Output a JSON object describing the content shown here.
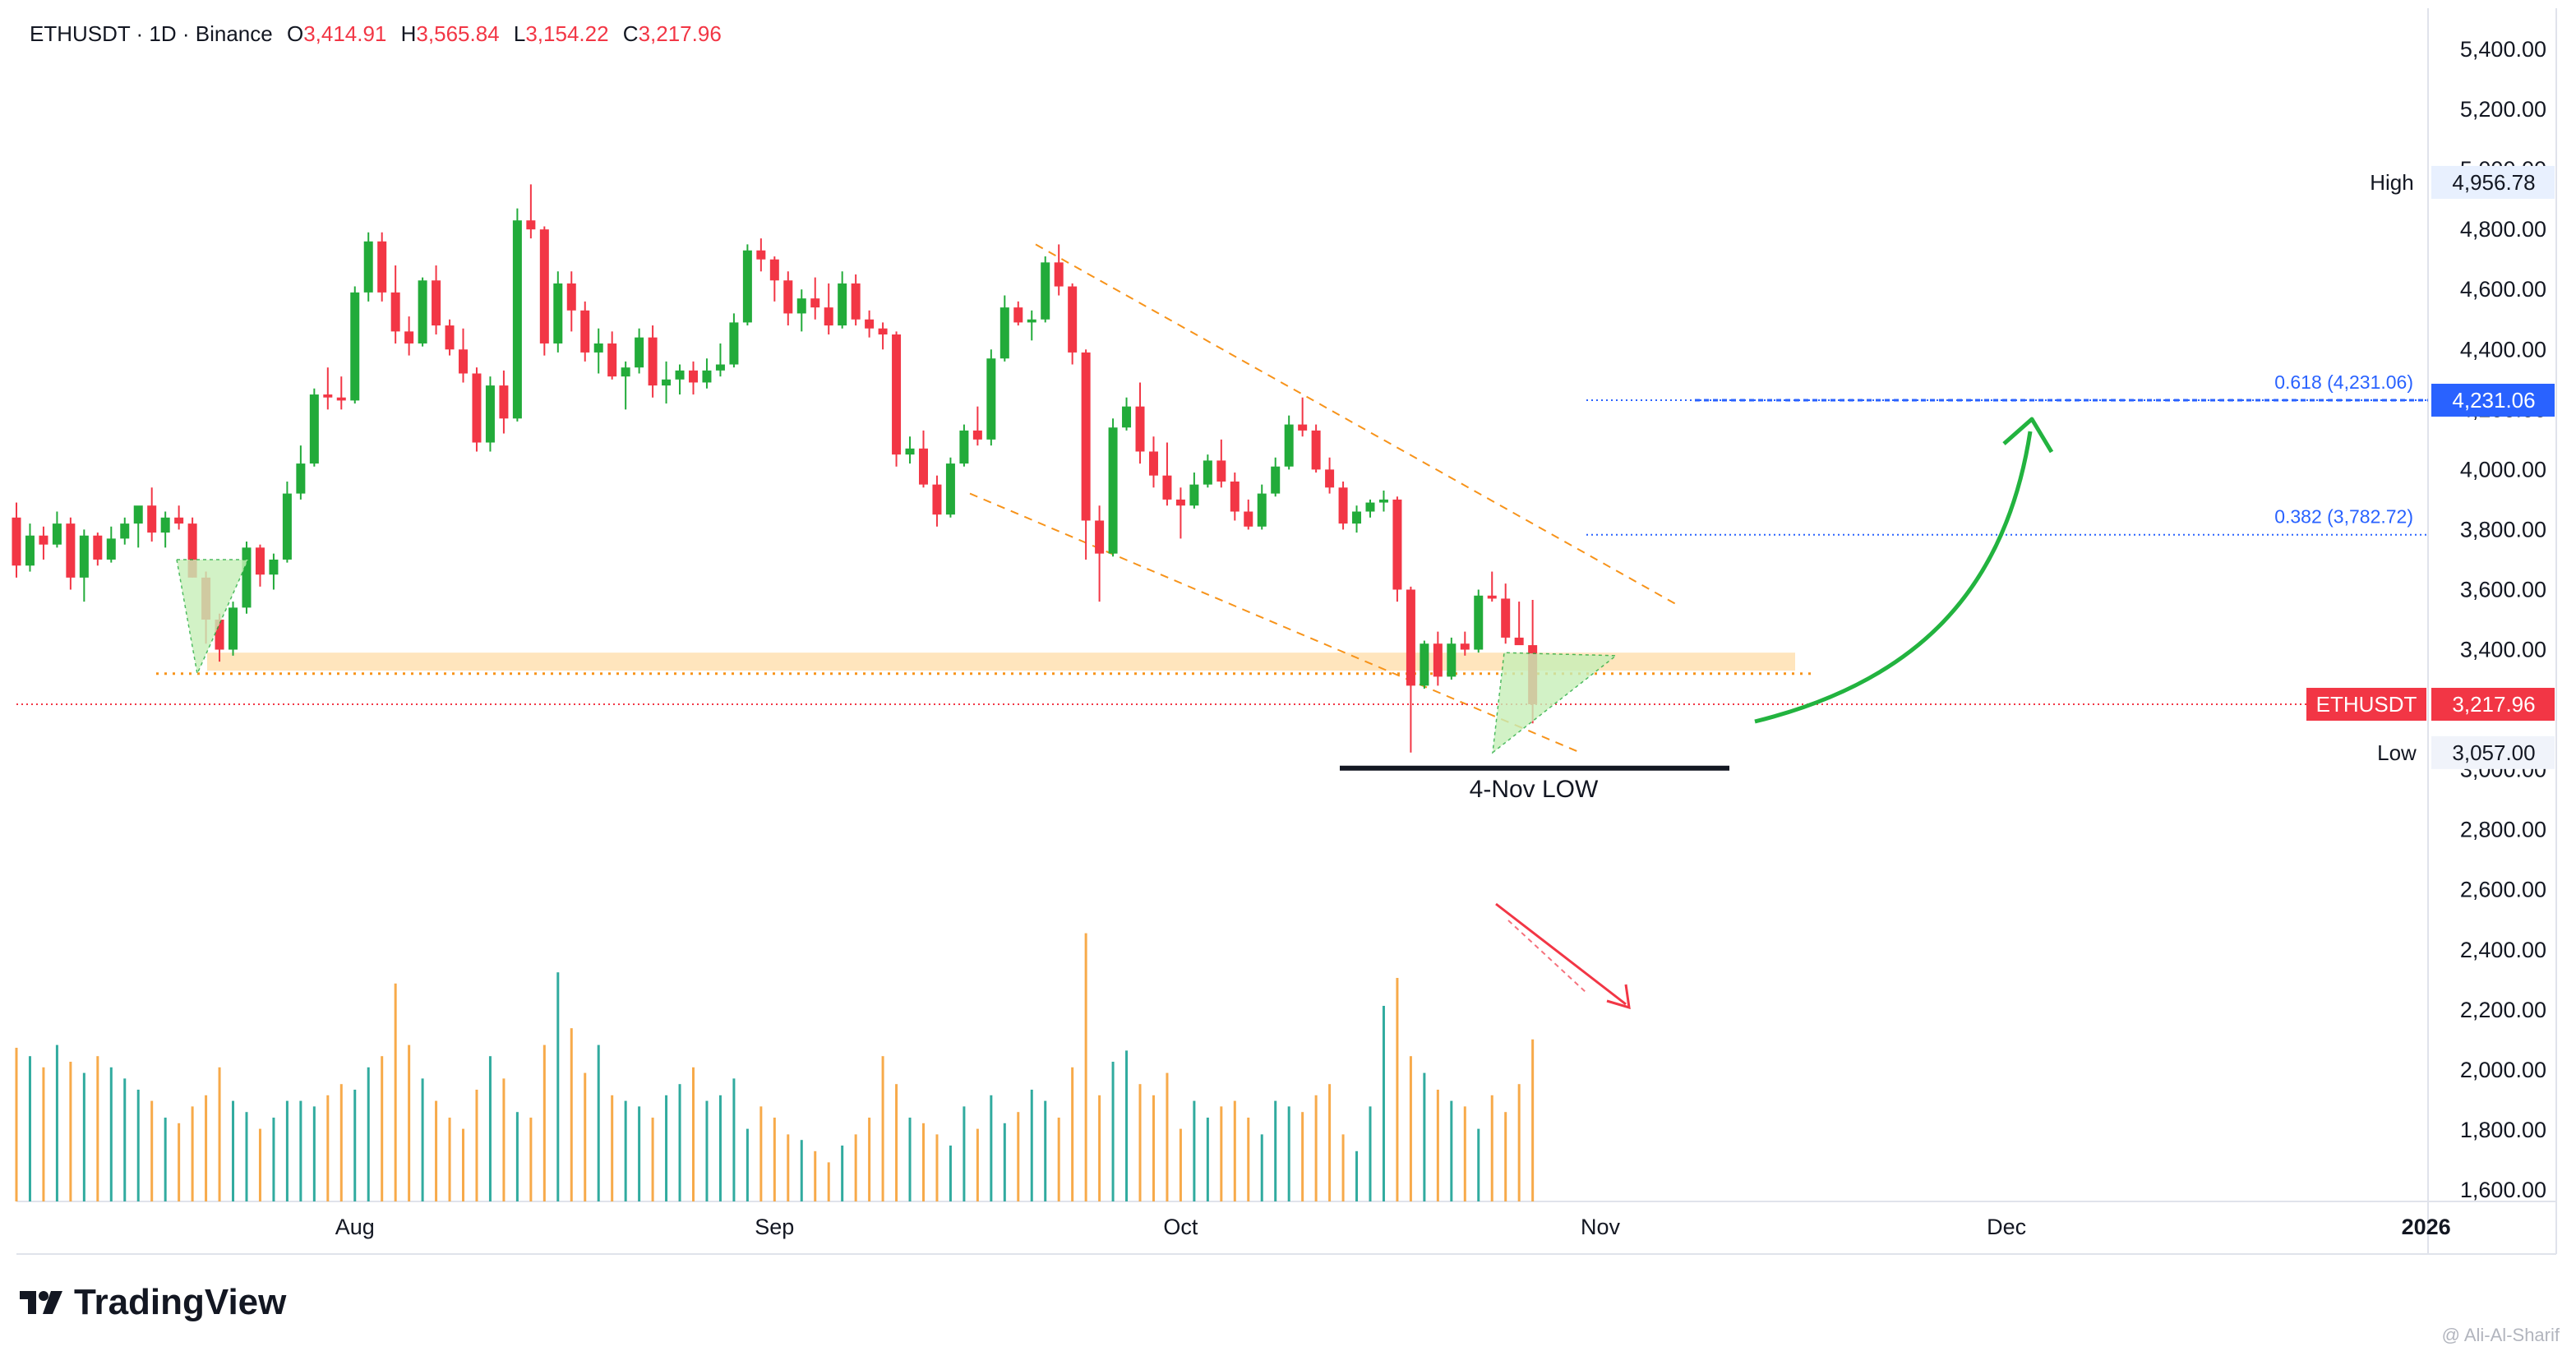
{
  "header": {
    "symbol_line": "ETHUSDT · 1D · Binance",
    "o_label": "O",
    "o_value": "3,414.91",
    "h_label": "H",
    "h_value": "3,565.84",
    "l_label": "L",
    "l_value": "3,154.22",
    "c_label": "C",
    "c_value": "3,217.96"
  },
  "brand": {
    "name": "TradingView",
    "watermark": "@ Ali-Al-Sharif"
  },
  "colors": {
    "up": "#22ab3a",
    "down": "#f23645",
    "vol_up": "#26a69a",
    "vol_down": "#f7a540",
    "fib": "#2962ff",
    "channel": "#f7931a",
    "zone": "#ffe0b2",
    "arrow_green": "#22b33f",
    "arrow_red": "#f23645"
  },
  "chart_data": {
    "type": "candlestick",
    "symbol": "ETHUSDT",
    "interval": "1D",
    "y_axis_ticks": [
      "5,400.00",
      "5,200.00",
      "5,000.00",
      "4,800.00",
      "4,600.00",
      "4,400.00",
      "4,200.00",
      "4,000.00",
      "3,800.00",
      "3,600.00",
      "3,400.00",
      "3,200.00",
      "3,000.00",
      "2,800.00",
      "2,600.00",
      "2,400.00",
      "2,200.00",
      "2,000.00",
      "1,800.00",
      "1,600.00"
    ],
    "x_axis_labels": [
      "Aug",
      "Sep",
      "Oct",
      "Nov",
      "Dec",
      "2026"
    ],
    "x_axis_dates": [
      "2025-08-01",
      "2025-09-01",
      "2025-10-01",
      "2025-11-01",
      "2025-12-01",
      "2026-01-01"
    ],
    "first_candle_date": "2025-07-07",
    "y_range": [
      1600,
      5400
    ],
    "ohlc": [
      [
        3840,
        3890,
        3640,
        3680
      ],
      [
        3680,
        3820,
        3660,
        3780
      ],
      [
        3780,
        3810,
        3700,
        3750
      ],
      [
        3750,
        3860,
        3740,
        3820
      ],
      [
        3820,
        3840,
        3600,
        3640
      ],
      [
        3640,
        3800,
        3560,
        3780
      ],
      [
        3780,
        3790,
        3680,
        3700
      ],
      [
        3700,
        3810,
        3690,
        3770
      ],
      [
        3770,
        3840,
        3750,
        3820
      ],
      [
        3820,
        3860,
        3740,
        3880
      ],
      [
        3880,
        3940,
        3760,
        3790
      ],
      [
        3790,
        3860,
        3740,
        3840
      ],
      [
        3840,
        3880,
        3800,
        3820
      ],
      [
        3820,
        3840,
        3640,
        3640
      ],
      [
        3640,
        3660,
        3420,
        3500
      ],
      [
        3500,
        3520,
        3360,
        3400
      ],
      [
        3400,
        3560,
        3380,
        3540
      ],
      [
        3540,
        3760,
        3520,
        3740
      ],
      [
        3740,
        3750,
        3610,
        3650
      ],
      [
        3650,
        3720,
        3600,
        3700
      ],
      [
        3700,
        3960,
        3690,
        3920
      ],
      [
        3920,
        4080,
        3900,
        4020
      ],
      [
        4020,
        4270,
        4010,
        4250
      ],
      [
        4250,
        4340,
        4200,
        4240
      ],
      [
        4240,
        4310,
        4200,
        4230
      ],
      [
        4230,
        4610,
        4220,
        4590
      ],
      [
        4590,
        4790,
        4560,
        4760
      ],
      [
        4760,
        4790,
        4560,
        4590
      ],
      [
        4590,
        4680,
        4420,
        4460
      ],
      [
        4460,
        4510,
        4380,
        4420
      ],
      [
        4420,
        4640,
        4410,
        4630
      ],
      [
        4630,
        4680,
        4450,
        4480
      ],
      [
        4480,
        4500,
        4380,
        4400
      ],
      [
        4400,
        4470,
        4290,
        4320
      ],
      [
        4320,
        4340,
        4060,
        4090
      ],
      [
        4090,
        4310,
        4060,
        4280
      ],
      [
        4280,
        4330,
        4120,
        4170
      ],
      [
        4170,
        4870,
        4160,
        4830
      ],
      [
        4830,
        4950,
        4770,
        4800
      ],
      [
        4800,
        4810,
        4380,
        4420
      ],
      [
        4420,
        4660,
        4390,
        4620
      ],
      [
        4620,
        4660,
        4460,
        4530
      ],
      [
        4530,
        4560,
        4360,
        4390
      ],
      [
        4390,
        4470,
        4320,
        4420
      ],
      [
        4420,
        4460,
        4300,
        4310
      ],
      [
        4310,
        4360,
        4200,
        4340
      ],
      [
        4340,
        4470,
        4320,
        4440
      ],
      [
        4440,
        4480,
        4240,
        4280
      ],
      [
        4280,
        4360,
        4220,
        4300
      ],
      [
        4300,
        4350,
        4250,
        4330
      ],
      [
        4330,
        4360,
        4250,
        4290
      ],
      [
        4290,
        4370,
        4270,
        4330
      ],
      [
        4330,
        4420,
        4310,
        4350
      ],
      [
        4350,
        4520,
        4340,
        4490
      ],
      [
        4490,
        4750,
        4480,
        4730
      ],
      [
        4730,
        4770,
        4660,
        4700
      ],
      [
        4700,
        4710,
        4560,
        4630
      ],
      [
        4630,
        4660,
        4480,
        4520
      ],
      [
        4520,
        4600,
        4460,
        4570
      ],
      [
        4570,
        4640,
        4500,
        4540
      ],
      [
        4540,
        4620,
        4450,
        4480
      ],
      [
        4480,
        4660,
        4470,
        4620
      ],
      [
        4620,
        4650,
        4480,
        4500
      ],
      [
        4500,
        4530,
        4440,
        4470
      ],
      [
        4470,
        4490,
        4400,
        4450
      ],
      [
        4450,
        4460,
        4010,
        4050
      ],
      [
        4050,
        4110,
        4020,
        4070
      ],
      [
        4070,
        4130,
        3940,
        3950
      ],
      [
        3950,
        3980,
        3810,
        3850
      ],
      [
        3850,
        4040,
        3840,
        4020
      ],
      [
        4020,
        4150,
        4010,
        4130
      ],
      [
        4130,
        4210,
        4080,
        4100
      ],
      [
        4100,
        4400,
        4080,
        4370
      ],
      [
        4370,
        4580,
        4360,
        4540
      ],
      [
        4540,
        4560,
        4480,
        4490
      ],
      [
        4490,
        4530,
        4430,
        4500
      ],
      [
        4500,
        4710,
        4490,
        4690
      ],
      [
        4690,
        4750,
        4580,
        4610
      ],
      [
        4610,
        4620,
        4350,
        4390
      ],
      [
        4390,
        4400,
        3700,
        3830
      ],
      [
        3830,
        3880,
        3560,
        3720
      ],
      [
        3720,
        4170,
        3710,
        4140
      ],
      [
        4140,
        4240,
        4130,
        4210
      ],
      [
        4210,
        4290,
        4020,
        4060
      ],
      [
        4060,
        4110,
        3940,
        3980
      ],
      [
        3980,
        4090,
        3880,
        3900
      ],
      [
        3900,
        3940,
        3770,
        3880
      ],
      [
        3880,
        3990,
        3870,
        3950
      ],
      [
        3950,
        4050,
        3940,
        4030
      ],
      [
        4030,
        4100,
        3940,
        3960
      ],
      [
        3960,
        3990,
        3830,
        3860
      ],
      [
        3860,
        3900,
        3800,
        3810
      ],
      [
        3810,
        3950,
        3800,
        3920
      ],
      [
        3920,
        4040,
        3910,
        4010
      ],
      [
        4010,
        4180,
        4000,
        4150
      ],
      [
        4150,
        4240,
        4110,
        4130
      ],
      [
        4130,
        4150,
        3990,
        4000
      ],
      [
        4000,
        4040,
        3920,
        3940
      ],
      [
        3940,
        3960,
        3800,
        3820
      ],
      [
        3820,
        3880,
        3790,
        3860
      ],
      [
        3860,
        3900,
        3840,
        3890
      ],
      [
        3890,
        3930,
        3860,
        3900
      ],
      [
        3900,
        3910,
        3560,
        3600
      ],
      [
        3600,
        3610,
        3057,
        3280
      ],
      [
        3280,
        3430,
        3270,
        3420
      ],
      [
        3420,
        3460,
        3280,
        3310
      ],
      [
        3310,
        3440,
        3300,
        3420
      ],
      [
        3420,
        3460,
        3380,
        3400
      ],
      [
        3400,
        3600,
        3390,
        3580
      ],
      [
        3580,
        3660,
        3560,
        3570
      ],
      [
        3570,
        3620,
        3420,
        3440
      ],
      [
        3440,
        3560,
        3420,
        3414.91
      ],
      [
        3414.91,
        3565.84,
        3154.22,
        3217.96
      ]
    ],
    "volume_heights": [
      0.55,
      0.52,
      0.48,
      0.56,
      0.5,
      0.46,
      0.52,
      0.48,
      0.44,
      0.4,
      0.36,
      0.3,
      0.28,
      0.34,
      0.38,
      0.48,
      0.36,
      0.32,
      0.26,
      0.3,
      0.36,
      0.36,
      0.34,
      0.38,
      0.42,
      0.4,
      0.48,
      0.52,
      0.78,
      0.56,
      0.44,
      0.36,
      0.3,
      0.26,
      0.4,
      0.52,
      0.44,
      0.32,
      0.3,
      0.56,
      0.82,
      0.62,
      0.46,
      0.56,
      0.38,
      0.36,
      0.34,
      0.3,
      0.38,
      0.42,
      0.48,
      0.36,
      0.38,
      0.44,
      0.26,
      0.34,
      0.3,
      0.24,
      0.22,
      0.18,
      0.14,
      0.2,
      0.24,
      0.3,
      0.52,
      0.42,
      0.3,
      0.28,
      0.24,
      0.2,
      0.34,
      0.26,
      0.38,
      0.28,
      0.32,
      0.4,
      0.36,
      0.3,
      0.48,
      0.96,
      0.38,
      0.5,
      0.54,
      0.42,
      0.38,
      0.46,
      0.26,
      0.36,
      0.3,
      0.34,
      0.36,
      0.3,
      0.24,
      0.36,
      0.34,
      0.32,
      0.38,
      0.42,
      0.24,
      0.18,
      0.34,
      0.7,
      0.8,
      0.52,
      0.46,
      0.4,
      0.36,
      0.34,
      0.26,
      0.38,
      0.32,
      0.42,
      0.58
    ],
    "annotations": {
      "high_label": "High",
      "high_value": "4,956.78",
      "low_label": "Low",
      "low_value": "3,057.00",
      "last_label": "ETHUSDT",
      "last_value": "3,217.96",
      "fib_618_label": "0.618 (4,231.06)",
      "fib_618_value": "4,231.06",
      "fib_618_price": 4231.06,
      "fib_382_label": "0.382 (3,782.72)",
      "fib_382_price": 3782.72,
      "low_marker_text": "4-Nov LOW"
    }
  }
}
